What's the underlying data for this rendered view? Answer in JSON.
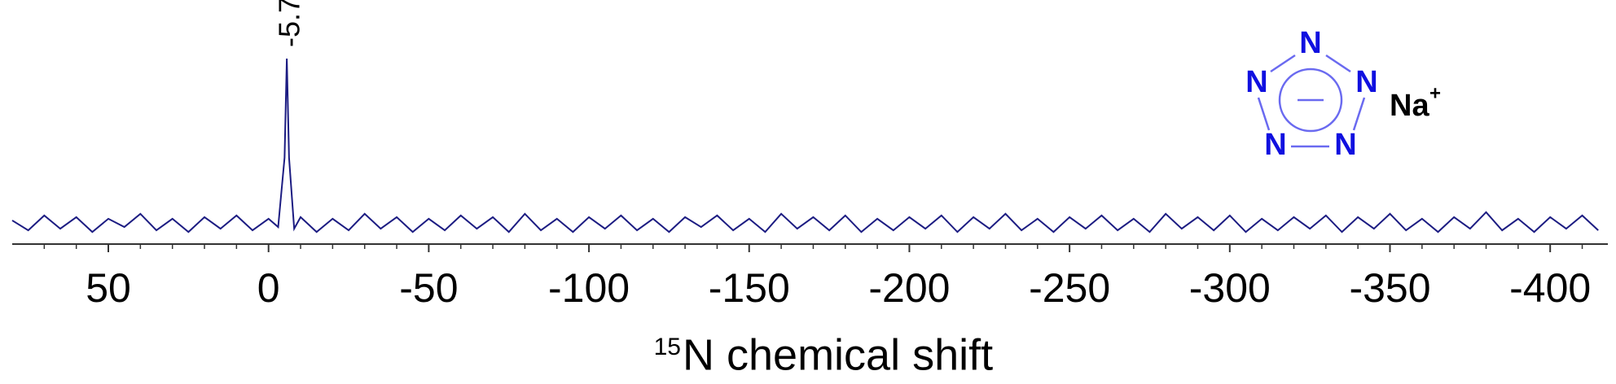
{
  "chart_data": {
    "type": "line",
    "xlabel_isotope": "15",
    "xlabel": "N chemical shift",
    "xlim": [
      80,
      -418
    ],
    "xticks": [
      50,
      0,
      -50,
      -100,
      -150,
      -200,
      -250,
      -300,
      -350,
      -400
    ],
    "xminorticks": [
      70,
      60,
      40,
      30,
      20,
      10,
      -10,
      -20,
      -30,
      -40,
      -60,
      -70,
      -80,
      -90,
      -110,
      -120,
      -130,
      -140,
      -160,
      -170,
      -180,
      -190,
      -210,
      -220,
      -230,
      -240,
      -260,
      -270,
      -280,
      -290,
      -310,
      -320,
      -330,
      -340,
      -360,
      -370,
      -380,
      -390,
      -410
    ],
    "peak_labels": [
      -5.7
    ],
    "series": [
      {
        "color": "#1c1c82",
        "x": [
          80,
          75,
          70,
          65,
          60,
          55,
          50,
          45,
          40,
          35,
          30,
          25,
          20,
          15,
          10,
          5,
          0,
          -3,
          -5,
          -5.7,
          -6.4,
          -8,
          -10,
          -15,
          -20,
          -25,
          -30,
          -35,
          -40,
          -45,
          -50,
          -55,
          -60,
          -65,
          -70,
          -75,
          -80,
          -85,
          -90,
          -95,
          -100,
          -105,
          -110,
          -115,
          -120,
          -125,
          -130,
          -135,
          -140,
          -145,
          -150,
          -155,
          -160,
          -165,
          -170,
          -175,
          -180,
          -185,
          -190,
          -195,
          -200,
          -205,
          -210,
          -215,
          -220,
          -225,
          -230,
          -235,
          -240,
          -245,
          -250,
          -255,
          -260,
          -265,
          -270,
          -275,
          -280,
          -285,
          -290,
          -295,
          -300,
          -305,
          -310,
          -315,
          -320,
          -325,
          -330,
          -335,
          -340,
          -345,
          -350,
          -355,
          -360,
          -365,
          -370,
          -375,
          -380,
          -385,
          -390,
          -395,
          -400,
          -405,
          -410,
          -415
        ],
        "values": [
          2,
          -4,
          5,
          -3,
          4,
          -5,
          3,
          -2,
          6,
          -4,
          3,
          -5,
          4,
          -3,
          5,
          -4,
          3,
          -2,
          40,
          100,
          40,
          -3,
          4,
          -5,
          3,
          -4,
          6,
          -3,
          4,
          -5,
          3,
          -4,
          5,
          -3,
          4,
          -5,
          6,
          -4,
          3,
          -5,
          4,
          -3,
          5,
          -4,
          3,
          -5,
          4,
          -2,
          5,
          -4,
          3,
          -5,
          6,
          -3,
          4,
          -4,
          5,
          -5,
          3,
          -4,
          4,
          -3,
          5,
          -5,
          4,
          -3,
          6,
          -4,
          3,
          -5,
          4,
          -3,
          5,
          -4,
          3,
          -5,
          6,
          -3,
          4,
          -4,
          5,
          -5,
          3,
          -4,
          4,
          -3,
          5,
          -5,
          4,
          -3,
          6,
          -4,
          3,
          -5,
          4,
          -3,
          7,
          -4,
          3,
          -5,
          4,
          -3,
          5,
          -4
        ]
      }
    ],
    "structure": {
      "atoms": [
        "N",
        "N",
        "N",
        "N",
        "N"
      ],
      "cation": "Na",
      "cation_charge": "+"
    }
  }
}
